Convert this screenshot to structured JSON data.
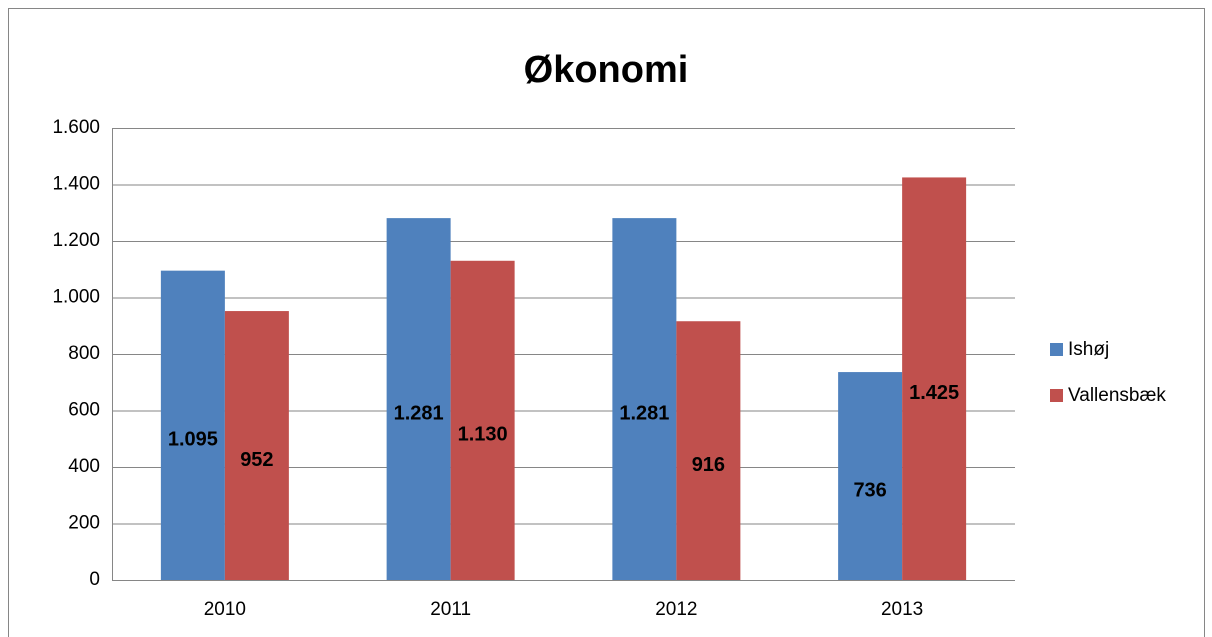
{
  "chart_data": {
    "type": "bar",
    "title": "Økonomi",
    "categories": [
      "2010",
      "2011",
      "2012",
      "2013"
    ],
    "series": [
      {
        "name": "Ishøj",
        "color": "#4f81bd",
        "values": [
          1095,
          1281,
          1281,
          736
        ],
        "value_labels": [
          "1.095",
          "1.281",
          "1.281",
          "736"
        ]
      },
      {
        "name": "Vallensbæk",
        "color": "#c0504d",
        "values": [
          952,
          1130,
          916,
          1425
        ],
        "value_labels": [
          "952",
          "1.130",
          "916",
          "1.425"
        ]
      }
    ],
    "ylim": [
      0,
      1600
    ],
    "yticks": [
      0,
      200,
      400,
      600,
      800,
      {
        "value": 1000,
        "label": "1.000"
      },
      {
        "value": 1200,
        "label": "1.200"
      },
      {
        "value": 1400,
        "label": "1.400"
      },
      {
        "value": 1600,
        "label": "1.600"
      }
    ],
    "grid": true,
    "legend": "right"
  }
}
